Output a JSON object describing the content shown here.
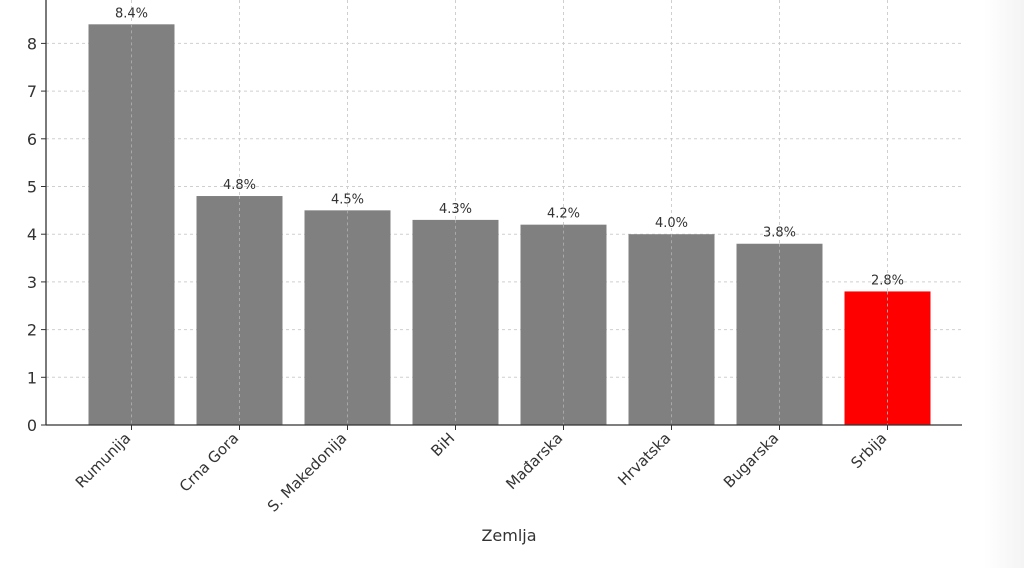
{
  "chart_data": {
    "type": "bar",
    "categories": [
      "Rumunija",
      "Crna Gora",
      "S. Makedonija",
      "BiH",
      "Mađarska",
      "Hrvatska",
      "Bugarska",
      "Srbija"
    ],
    "values": [
      8.4,
      4.8,
      4.5,
      4.3,
      4.2,
      4.0,
      3.8,
      2.8
    ],
    "data_labels": [
      "8.4%",
      "4.8%",
      "4.5%",
      "4.3%",
      "4.2%",
      "4.0%",
      "3.8%",
      "2.8%"
    ],
    "title": "",
    "xlabel": "Zemlja",
    "ylabel": "",
    "y_ticks": [
      0,
      1,
      2,
      3,
      4,
      5,
      6,
      7,
      8
    ],
    "ylim": [
      0,
      8.8
    ],
    "grid": true,
    "bar_colors": [
      "#808080",
      "#808080",
      "#808080",
      "#808080",
      "#808080",
      "#808080",
      "#808080",
      "#ff0000"
    ]
  }
}
